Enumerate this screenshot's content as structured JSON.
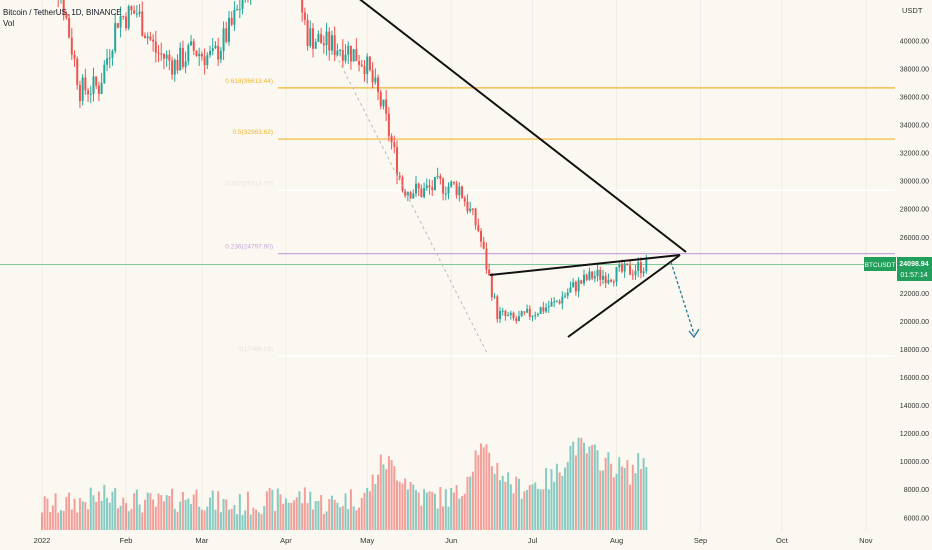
{
  "legend": {
    "symbol": "Bitcoin / TetherUS, 1D, BINANCE",
    "volume_label": "Vol"
  },
  "price_scale": {
    "currency": "USDT",
    "ticks": [
      "40000.00",
      "38000.00",
      "36000.00",
      "34000.00",
      "32000.00",
      "30000.00",
      "28000.00",
      "26000.00",
      "22000.00",
      "20000.00",
      "18000.00",
      "16000.00",
      "14000.00",
      "12000.00",
      "10000.00",
      "8000.00",
      "6000.00"
    ]
  },
  "price_tag": {
    "symbol": "BTCUSDT",
    "price": "24098.94",
    "countdown": "01:57:14"
  },
  "time_axis": [
    "2022",
    "Feb",
    "Mar",
    "Apr",
    "May",
    "Jun",
    "Jul",
    "Aug",
    "Sep",
    "Oct",
    "Nov"
  ],
  "fib_levels": [
    {
      "label": "0.618(36613.44)",
      "price": 36613.44,
      "color": "#f2b52e"
    },
    {
      "label": "0.5(32963.62)",
      "price": 32963.62,
      "color": "#f2b52e"
    },
    {
      "label": "0.382(29313.79)",
      "price": 29313.79,
      "color": "#ffffff"
    },
    {
      "label": "0.236(24797.90)",
      "price": 24797.9,
      "color": "#c9a6e0"
    },
    {
      "label": "0(17486.23)",
      "price": 17486.23,
      "color": "#ffffff"
    }
  ],
  "chart_data": {
    "type": "candlestick",
    "title": "Bitcoin / TetherUS, 1D, BINANCE",
    "x": [
      "2022-01-01",
      "2022-01-08",
      "2022-01-15",
      "2022-01-22",
      "2022-01-29",
      "2022-02-05",
      "2022-02-12",
      "2022-02-19",
      "2022-02-26",
      "2022-03-05",
      "2022-03-12",
      "2022-03-19",
      "2022-03-26",
      "2022-04-02",
      "2022-04-09",
      "2022-04-16",
      "2022-04-23",
      "2022-04-30",
      "2022-05-07",
      "2022-05-14",
      "2022-05-21",
      "2022-05-28",
      "2022-06-04",
      "2022-06-11",
      "2022-06-18",
      "2022-06-25",
      "2022-07-02",
      "2022-07-09",
      "2022-07-16",
      "2022-07-23",
      "2022-07-30",
      "2022-08-06",
      "2022-08-13"
    ],
    "close": [
      47300,
      43500,
      36500,
      36700,
      41600,
      42000,
      39200,
      38300,
      39300,
      38700,
      41000,
      44500,
      46800,
      46200,
      40400,
      39700,
      39500,
      38500,
      35000,
      29500,
      29200,
      29700,
      29500,
      26500,
      20500,
      20000,
      20700,
      21200,
      22400,
      23200,
      23300,
      23600,
      24098.94
    ],
    "volume": [
      6800,
      6900,
      7100,
      7400,
      7500,
      7200,
      6900,
      7200,
      7600,
      7100,
      6800,
      7000,
      7200,
      7300,
      7500,
      6900,
      7300,
      7400,
      10100,
      9000,
      7500,
      7400,
      7600,
      11000,
      9500,
      8100,
      8400,
      8800,
      11200,
      10500,
      9800,
      9200,
      10500
    ],
    "y_range": [
      5000,
      44000
    ],
    "y_unit": "USDT",
    "series_colors": {
      "up": "#26a69a",
      "down": "#ef5350"
    },
    "current_price": 24098.94,
    "annotations": [
      "rising wedge trendlines",
      "descending trendline",
      "projected breakdown arrow"
    ]
  }
}
